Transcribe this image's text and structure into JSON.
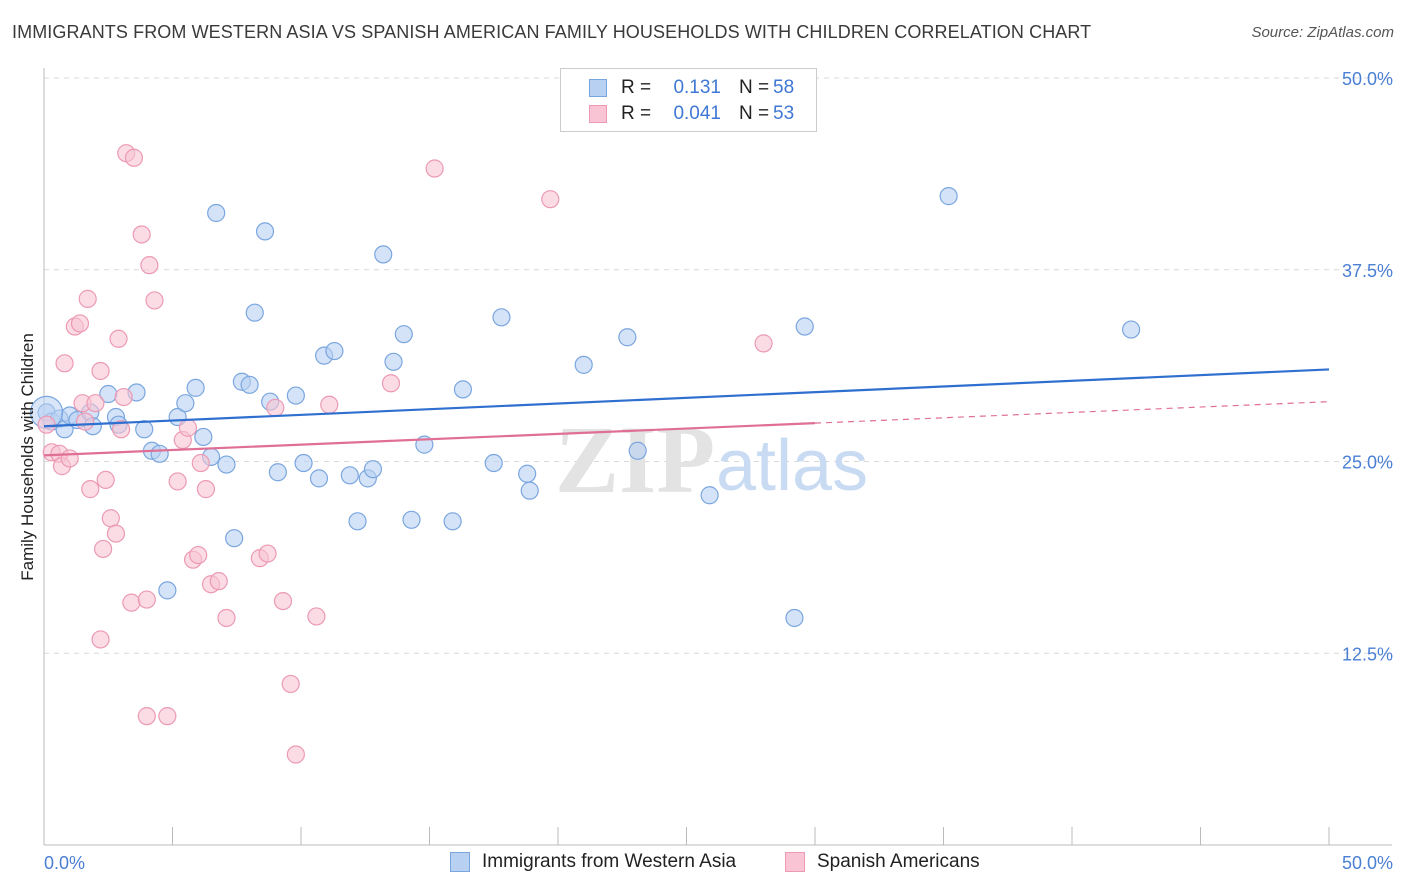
{
  "title": "IMMIGRANTS FROM WESTERN ASIA VS SPANISH AMERICAN FAMILY HOUSEHOLDS WITH CHILDREN CORRELATION CHART",
  "source": "Source: ZipAtlas.com",
  "watermark": {
    "zip": "ZIP",
    "atlas": "atlas"
  },
  "legend": {
    "series1": {
      "r_label": "R =",
      "r_value": "0.131",
      "n_label": "N =",
      "n_value": "58"
    },
    "series2": {
      "r_label": "R =",
      "r_value": "0.041",
      "n_label": "N =",
      "n_value": "53"
    }
  },
  "bottom_legend": {
    "series1": "Immigrants from Western Asia",
    "series2": "Spanish Americans"
  },
  "colors": {
    "blue_fill": "#b8d1f2",
    "blue_stroke": "#7aa6df",
    "blue_line": "#2f6fcf",
    "pink_fill": "#f9c4d4",
    "pink_stroke": "#ec9ab4",
    "pink_line": "#e06f96",
    "grid": "#d9d9d9",
    "axis_text": "#4a7fd4"
  },
  "chart_data": {
    "type": "scatter",
    "title": "IMMIGRANTS FROM WESTERN ASIA VS SPANISH AMERICAN FAMILY HOUSEHOLDS WITH CHILDREN CORRELATION CHART",
    "xlabel": "",
    "ylabel": "Family Households with Children",
    "xlim": [
      0,
      50
    ],
    "ylim": [
      0,
      50
    ],
    "x_tick_labels": [
      "0.0%",
      "50.0%"
    ],
    "y_tick_values": [
      12.5,
      25.0,
      37.5,
      50.0
    ],
    "y_tick_labels": [
      "12.5%",
      "25.0%",
      "37.5%",
      "50.0%"
    ],
    "series": [
      {
        "name": "Immigrants from Western Asia",
        "color": "#7aa6df",
        "trend": {
          "x": [
            0,
            50
          ],
          "y": [
            27.3,
            31.0
          ]
        },
        "points": [
          [
            0.1,
            28.2
          ],
          [
            0.3,
            27.6
          ],
          [
            0.6,
            27.8
          ],
          [
            0.8,
            27.1
          ],
          [
            1.0,
            28.0
          ],
          [
            1.3,
            27.7
          ],
          [
            1.8,
            28.2
          ],
          [
            1.9,
            27.3
          ],
          [
            2.5,
            29.4
          ],
          [
            2.8,
            27.9
          ],
          [
            2.9,
            27.4
          ],
          [
            3.6,
            29.5
          ],
          [
            3.9,
            27.1
          ],
          [
            4.2,
            25.7
          ],
          [
            4.5,
            25.5
          ],
          [
            4.8,
            16.6
          ],
          [
            5.2,
            27.9
          ],
          [
            5.5,
            28.8
          ],
          [
            5.9,
            29.8
          ],
          [
            6.2,
            26.6
          ],
          [
            6.5,
            25.3
          ],
          [
            6.7,
            41.2
          ],
          [
            7.1,
            24.8
          ],
          [
            7.4,
            20.0
          ],
          [
            7.7,
            30.2
          ],
          [
            8.0,
            30.0
          ],
          [
            8.2,
            34.7
          ],
          [
            8.6,
            40.0
          ],
          [
            8.8,
            28.9
          ],
          [
            9.1,
            24.3
          ],
          [
            9.8,
            29.3
          ],
          [
            10.1,
            24.9
          ],
          [
            10.7,
            23.9
          ],
          [
            10.9,
            31.9
          ],
          [
            11.3,
            32.2
          ],
          [
            11.9,
            24.1
          ],
          [
            12.2,
            21.1
          ],
          [
            12.6,
            23.9
          ],
          [
            12.8,
            24.5
          ],
          [
            13.2,
            38.5
          ],
          [
            13.6,
            31.5
          ],
          [
            14.0,
            33.3
          ],
          [
            14.3,
            21.2
          ],
          [
            14.8,
            26.1
          ],
          [
            15.9,
            21.1
          ],
          [
            16.3,
            29.7
          ],
          [
            17.5,
            24.9
          ],
          [
            17.8,
            34.4
          ],
          [
            18.8,
            24.2
          ],
          [
            18.9,
            23.1
          ],
          [
            21.0,
            31.3
          ],
          [
            22.7,
            33.1
          ],
          [
            23.1,
            25.7
          ],
          [
            25.9,
            22.8
          ],
          [
            29.2,
            14.8
          ],
          [
            29.6,
            33.8
          ],
          [
            35.2,
            42.3
          ],
          [
            42.3,
            33.6
          ]
        ]
      },
      {
        "name": "Spanish Americans",
        "color": "#ec9ab4",
        "trend": {
          "x": [
            0,
            30
          ],
          "y": [
            25.4,
            27.5
          ],
          "dashed_extension": {
            "x": [
              30,
              50
            ],
            "y": [
              27.5,
              28.9
            ]
          }
        },
        "points": [
          [
            0.1,
            27.4
          ],
          [
            0.3,
            25.6
          ],
          [
            0.6,
            25.5
          ],
          [
            0.7,
            24.7
          ],
          [
            0.8,
            31.4
          ],
          [
            1.0,
            25.2
          ],
          [
            1.2,
            33.8
          ],
          [
            1.4,
            34.0
          ],
          [
            1.5,
            28.8
          ],
          [
            1.6,
            27.6
          ],
          [
            1.7,
            35.6
          ],
          [
            1.8,
            23.2
          ],
          [
            2.0,
            28.8
          ],
          [
            2.2,
            13.4
          ],
          [
            2.2,
            30.9
          ],
          [
            2.3,
            19.3
          ],
          [
            2.4,
            23.8
          ],
          [
            2.6,
            21.3
          ],
          [
            2.8,
            20.3
          ],
          [
            2.9,
            33.0
          ],
          [
            3.0,
            27.1
          ],
          [
            3.1,
            29.2
          ],
          [
            3.2,
            45.1
          ],
          [
            3.4,
            15.8
          ],
          [
            3.5,
            44.8
          ],
          [
            3.8,
            39.8
          ],
          [
            4.0,
            8.4
          ],
          [
            4.1,
            37.8
          ],
          [
            4.3,
            35.5
          ],
          [
            4.8,
            8.4
          ],
          [
            5.2,
            23.7
          ],
          [
            5.4,
            26.4
          ],
          [
            5.6,
            27.2
          ],
          [
            5.8,
            18.6
          ],
          [
            6.0,
            18.9
          ],
          [
            6.1,
            24.9
          ],
          [
            6.3,
            23.2
          ],
          [
            6.5,
            17.0
          ],
          [
            6.8,
            17.2
          ],
          [
            7.1,
            14.8
          ],
          [
            8.4,
            18.7
          ],
          [
            8.7,
            19.0
          ],
          [
            9.0,
            28.5
          ],
          [
            9.3,
            15.9
          ],
          [
            9.6,
            10.5
          ],
          [
            9.8,
            5.9
          ],
          [
            10.6,
            14.9
          ],
          [
            11.1,
            28.7
          ],
          [
            13.5,
            30.1
          ],
          [
            15.2,
            44.1
          ],
          [
            19.7,
            42.1
          ],
          [
            28.0,
            32.7
          ],
          [
            4.0,
            16.0
          ]
        ]
      }
    ]
  }
}
